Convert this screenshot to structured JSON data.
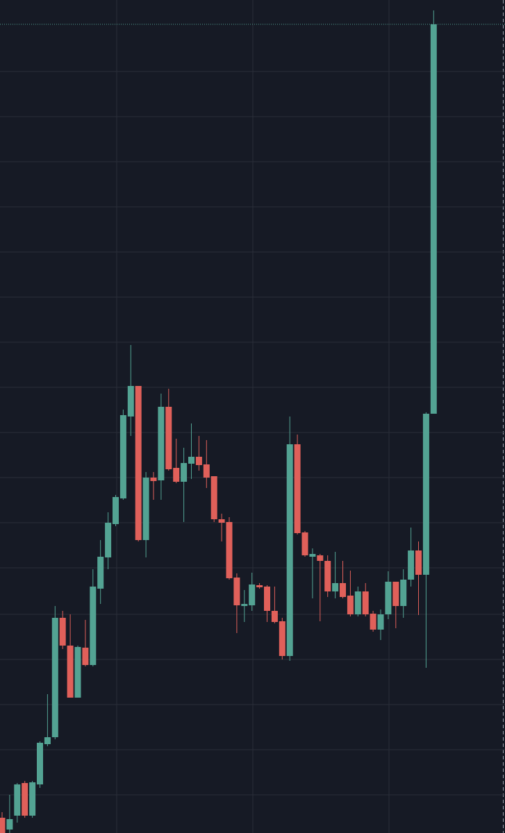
{
  "chart_data": {
    "type": "candlestick",
    "categories": [
      null,
      null,
      null,
      null,
      null,
      null,
      null,
      null,
      null,
      null,
      null,
      null,
      null,
      null,
      null,
      null,
      null,
      null,
      null,
      null,
      null,
      null,
      null,
      null,
      null,
      null,
      null,
      null,
      null,
      null,
      null,
      null,
      null,
      null,
      null,
      null,
      null,
      null,
      null,
      null,
      null,
      null,
      null,
      null,
      null,
      null,
      null,
      null,
      null,
      null,
      null,
      null,
      null,
      null,
      null,
      null,
      null,
      null
    ],
    "open": [
      22,
      5,
      25,
      72,
      25,
      70,
      128,
      138,
      310,
      270,
      195,
      267,
      242,
      352,
      397,
      445,
      482,
      600,
      644,
      422,
      512,
      508,
      614,
      526,
      506,
      532,
      542,
      531,
      514,
      452,
      448,
      368,
      327,
      328,
      357,
      355,
      320,
      305,
      255,
      560,
      433,
      398,
      400,
      392,
      348,
      360,
      342,
      315,
      348,
      316,
      293,
      315,
      362,
      327,
      365,
      407,
      372,
      604
    ],
    "high": [
      30,
      55,
      72,
      75,
      75,
      132,
      200,
      327,
      320,
      315,
      270,
      307,
      380,
      422,
      462,
      487,
      610,
      703,
      644,
      520,
      520,
      633,
      640,
      568,
      555,
      590,
      572,
      566,
      514,
      460,
      455,
      374,
      350,
      375,
      360,
      357,
      355,
      310,
      600,
      574,
      435,
      410,
      402,
      400,
      405,
      392,
      378,
      355,
      360,
      320,
      322,
      377,
      362,
      380,
      440,
      420,
      606,
      1185
    ],
    "low": [
      0,
      0,
      15,
      22,
      22,
      65,
      125,
      135,
      265,
      195,
      195,
      240,
      240,
      330,
      380,
      442,
      480,
      572,
      420,
      397,
      480,
      480,
      522,
      504,
      448,
      510,
      522,
      497,
      448,
      420,
      365,
      288,
      304,
      320,
      352,
      304,
      302,
      250,
      248,
      430,
      398,
      338,
      305,
      340,
      338,
      338,
      312,
      312,
      312,
      290,
      278,
      308,
      295,
      310,
      355,
      314,
      238,
      604
    ],
    "close": [
      0,
      20,
      70,
      25,
      73,
      130,
      138,
      310,
      270,
      195,
      268,
      242,
      355,
      398,
      447,
      484,
      602,
      644,
      422,
      512,
      507,
      614,
      524,
      506,
      533,
      542,
      530,
      512,
      452,
      447,
      367,
      328,
      330,
      358,
      354,
      320,
      304,
      255,
      560,
      432,
      400,
      402,
      392,
      348,
      360,
      340,
      315,
      348,
      315,
      293,
      315,
      362,
      327,
      365,
      407,
      372,
      604,
      1165
    ],
    "up_color": "#53a393",
    "down_color": "#e0605a",
    "ylim": [
      0,
      1200
    ],
    "yticks": [
      55,
      120,
      185,
      250,
      315,
      382,
      447,
      512,
      577,
      642,
      707,
      772,
      837,
      902,
      967,
      1032,
      1097
    ],
    "grid": true
  }
}
